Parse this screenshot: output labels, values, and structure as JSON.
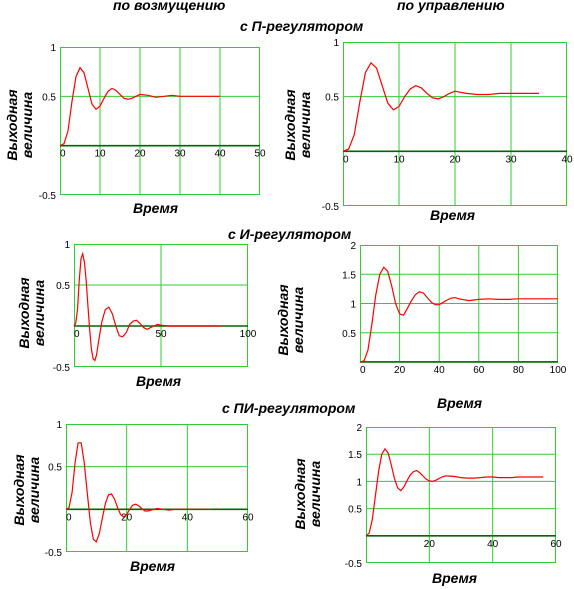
{
  "headers": {
    "disturbance": "по возмущению",
    "control": "по управлению",
    "p_controller": "с П-регулятором",
    "i_controller": "с И-регулятором",
    "pi_controller": "с ПИ-регулятором"
  },
  "colors": {
    "grid": "#33cc33",
    "curve": "#ff0000",
    "axis": "#000000",
    "frame": "#33cc33"
  },
  "chart_data": [
    {
      "id": "p-disturbance",
      "type": "line",
      "ylabel_line1": "Выходная",
      "ylabel_line2": "величина",
      "xlabel": "Время",
      "xlim": [
        0,
        50
      ],
      "ylim": [
        -0.5,
        1
      ],
      "xticks": [
        "0",
        "10",
        "20",
        "30",
        "40",
        "50"
      ],
      "yticks": [
        "-0.5",
        "0.5",
        "1"
      ],
      "x": [
        0,
        1,
        2,
        3,
        4,
        5,
        6,
        7,
        8,
        9,
        10,
        11,
        12,
        13,
        14,
        15,
        16,
        17,
        18,
        19,
        20,
        22,
        24,
        26,
        28,
        30,
        32,
        34,
        36,
        38,
        40
      ],
      "y": [
        0,
        0.02,
        0.15,
        0.45,
        0.7,
        0.79,
        0.74,
        0.58,
        0.42,
        0.37,
        0.4,
        0.48,
        0.55,
        0.58,
        0.56,
        0.52,
        0.48,
        0.47,
        0.48,
        0.5,
        0.52,
        0.51,
        0.49,
        0.5,
        0.51,
        0.5,
        0.5,
        0.5,
        0.5,
        0.5,
        0.5
      ]
    },
    {
      "id": "p-control",
      "type": "line",
      "ylabel_line1": "Выходная",
      "ylabel_line2": "величина",
      "xlabel": "Время",
      "xlim": [
        0,
        40
      ],
      "ylim": [
        -0.5,
        1
      ],
      "xticks": [
        "0",
        "10",
        "20",
        "30",
        "40"
      ],
      "yticks": [
        "-0.5",
        "0.5",
        "1"
      ],
      "x": [
        0,
        1,
        2,
        3,
        4,
        5,
        6,
        7,
        8,
        9,
        10,
        11,
        12,
        13,
        14,
        15,
        16,
        17,
        18,
        19,
        20,
        22,
        24,
        26,
        28,
        30,
        32,
        34,
        35
      ],
      "y": [
        0,
        0.02,
        0.15,
        0.45,
        0.72,
        0.81,
        0.76,
        0.6,
        0.44,
        0.38,
        0.41,
        0.5,
        0.57,
        0.6,
        0.58,
        0.53,
        0.49,
        0.48,
        0.5,
        0.53,
        0.55,
        0.53,
        0.52,
        0.52,
        0.53,
        0.53,
        0.53,
        0.53,
        0.53
      ]
    },
    {
      "id": "i-disturbance",
      "type": "line",
      "ylabel_line1": "Выходная",
      "ylabel_line2": "величина",
      "xlabel": "Время",
      "xlim": [
        0,
        100
      ],
      "ylim": [
        -0.5,
        1
      ],
      "xticks": [
        "0",
        "50",
        "100"
      ],
      "yticks": [
        "-0.5",
        "0.5",
        "1"
      ],
      "x": [
        0,
        1,
        2,
        3,
        4,
        5,
        6,
        7,
        8,
        9,
        10,
        11,
        12,
        13,
        14,
        16,
        18,
        20,
        22,
        24,
        26,
        28,
        30,
        32,
        34,
        36,
        38,
        40,
        42,
        44,
        46,
        48,
        50,
        55,
        60,
        65,
        70,
        75,
        80,
        85
      ],
      "y": [
        0,
        0.03,
        0.2,
        0.55,
        0.82,
        0.88,
        0.78,
        0.55,
        0.25,
        -0.05,
        -0.28,
        -0.4,
        -0.42,
        -0.35,
        -0.2,
        0.05,
        0.2,
        0.23,
        0.15,
        0.0,
        -0.12,
        -0.13,
        -0.08,
        0.02,
        0.06,
        0.07,
        0.03,
        -0.02,
        -0.04,
        -0.02,
        0.0,
        0.02,
        0.01,
        0.0,
        0.0,
        0.0,
        0.0,
        0.0,
        0.0,
        0.0
      ]
    },
    {
      "id": "i-control",
      "type": "line",
      "ylabel_line1": "Выходная",
      "ylabel_line2": "величина",
      "xlabel": "Время",
      "xlim": [
        0,
        100
      ],
      "ylim": [
        0,
        2
      ],
      "xticks": [
        "0",
        "20",
        "40",
        "60",
        "80",
        "100"
      ],
      "yticks": [
        "0.5",
        "1",
        "1.5",
        "2"
      ],
      "x": [
        0,
        2,
        4,
        6,
        8,
        10,
        12,
        14,
        16,
        18,
        20,
        22,
        24,
        26,
        28,
        30,
        32,
        34,
        36,
        38,
        40,
        42,
        44,
        46,
        48,
        50,
        55,
        60,
        65,
        70,
        75,
        80,
        85,
        90,
        95,
        100
      ],
      "y": [
        0,
        0.02,
        0.2,
        0.65,
        1.15,
        1.5,
        1.62,
        1.55,
        1.3,
        1.0,
        0.82,
        0.8,
        0.92,
        1.05,
        1.15,
        1.2,
        1.18,
        1.1,
        1.02,
        0.98,
        0.98,
        1.02,
        1.06,
        1.09,
        1.1,
        1.08,
        1.05,
        1.07,
        1.08,
        1.07,
        1.07,
        1.08,
        1.08,
        1.08,
        1.08,
        1.08
      ]
    },
    {
      "id": "pi-disturbance",
      "type": "line",
      "ylabel_line1": "Выходная",
      "ylabel_line2": "величина",
      "xlabel": "Время",
      "xlim": [
        0,
        60
      ],
      "ylim": [
        -0.5,
        1
      ],
      "xticks": [
        "0",
        "20",
        "40",
        "60"
      ],
      "yticks": [
        "-0.5",
        "0.5",
        "1"
      ],
      "x": [
        0,
        1,
        2,
        3,
        4,
        5,
        6,
        7,
        8,
        9,
        10,
        11,
        12,
        13,
        14,
        15,
        16,
        17,
        18,
        19,
        20,
        21,
        22,
        23,
        24,
        25,
        26,
        27,
        28,
        30,
        32,
        34,
        36,
        38,
        40,
        42,
        44,
        46,
        48
      ],
      "y": [
        0,
        0.02,
        0.2,
        0.55,
        0.78,
        0.78,
        0.55,
        0.2,
        -0.15,
        -0.35,
        -0.38,
        -0.28,
        -0.1,
        0.07,
        0.17,
        0.18,
        0.12,
        0.02,
        -0.06,
        -0.09,
        -0.06,
        0.0,
        0.05,
        0.06,
        0.04,
        0.01,
        -0.02,
        -0.02,
        -0.01,
        0.01,
        0.0,
        -0.01,
        0.0,
        0.0,
        0.0,
        0.0,
        0.0,
        0.0,
        0.0
      ]
    },
    {
      "id": "pi-control",
      "type": "line",
      "ylabel_line1": "Выходная",
      "ylabel_line2": "величина",
      "xlabel": "Время",
      "xlim": [
        0,
        60
      ],
      "ylim": [
        -0.5,
        2
      ],
      "xticks": [
        "20",
        "40",
        "60"
      ],
      "yticks": [
        "-0.5",
        "0.5",
        "1",
        "1.5",
        "2"
      ],
      "x": [
        0,
        1,
        2,
        3,
        4,
        5,
        6,
        7,
        8,
        9,
        10,
        11,
        12,
        13,
        14,
        15,
        16,
        17,
        18,
        19,
        20,
        21,
        22,
        23,
        24,
        25,
        26,
        28,
        30,
        32,
        34,
        36,
        38,
        40,
        42,
        44,
        46,
        48,
        50,
        52,
        54,
        56
      ],
      "y": [
        0,
        0.05,
        0.3,
        0.75,
        1.2,
        1.5,
        1.6,
        1.52,
        1.3,
        1.05,
        0.88,
        0.83,
        0.9,
        1.02,
        1.12,
        1.18,
        1.2,
        1.16,
        1.1,
        1.04,
        1.01,
        1.0,
        1.02,
        1.05,
        1.08,
        1.1,
        1.1,
        1.09,
        1.07,
        1.06,
        1.06,
        1.07,
        1.08,
        1.08,
        1.07,
        1.07,
        1.07,
        1.08,
        1.08,
        1.08,
        1.08,
        1.08
      ]
    }
  ]
}
